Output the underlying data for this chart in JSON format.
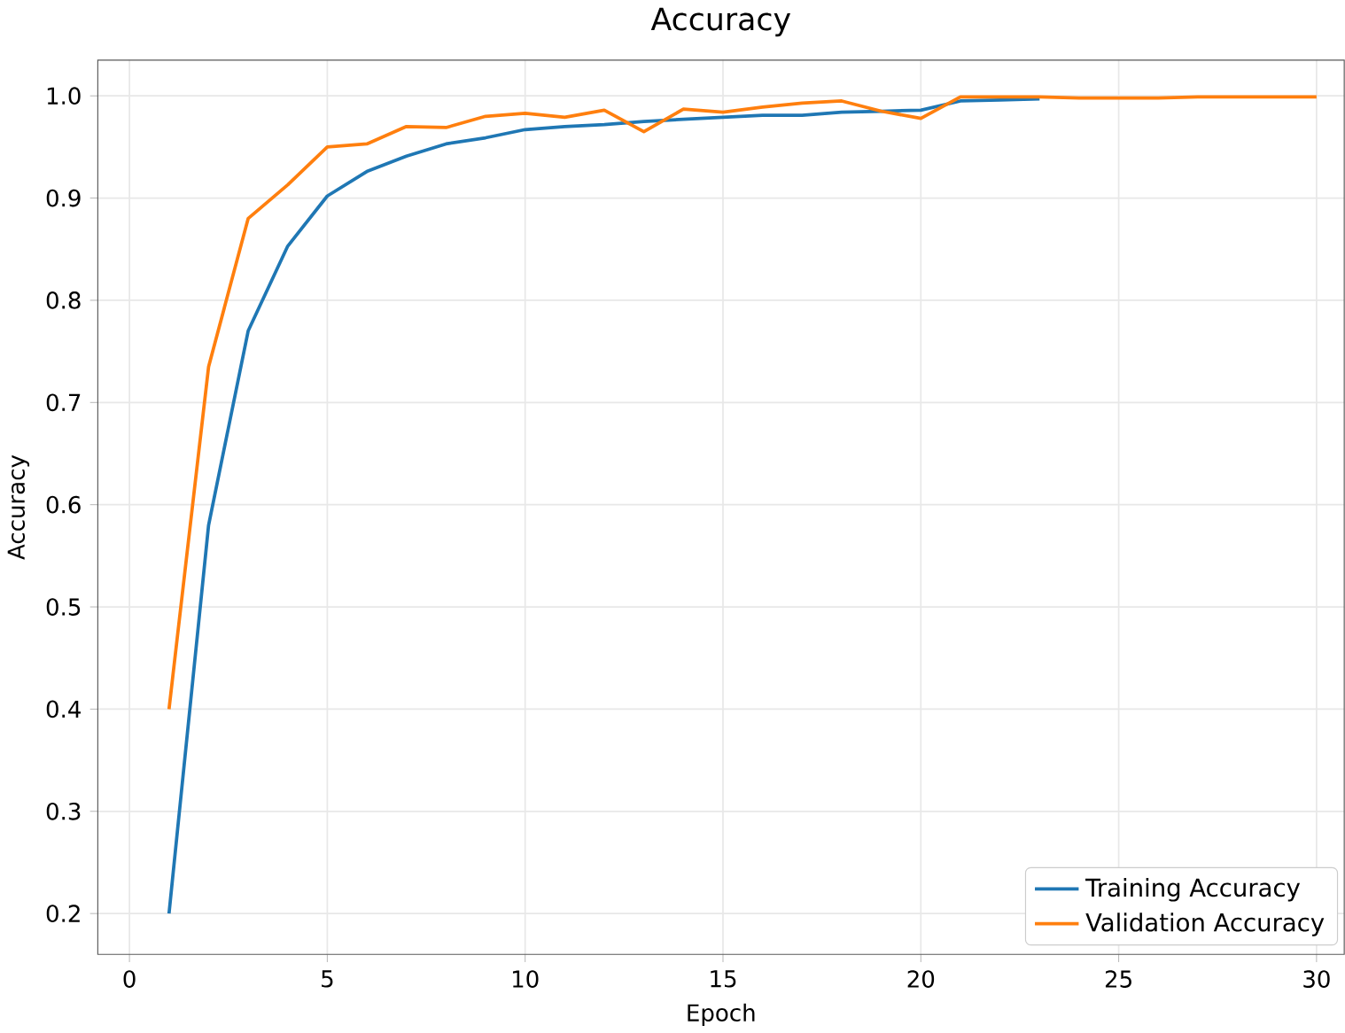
{
  "chart_data": {
    "type": "line",
    "title": "Accuracy",
    "xlabel": "Epoch",
    "ylabel": "Accuracy",
    "x": [
      1,
      2,
      3,
      4,
      5,
      6,
      7,
      8,
      9,
      10,
      11,
      12,
      13,
      14,
      15,
      16,
      17,
      18,
      19,
      20,
      21,
      22,
      23,
      24,
      25,
      26,
      27,
      28,
      29,
      30
    ],
    "series": [
      {
        "name": "Training Accuracy",
        "color": "#1f77b4",
        "values": [
          0.2,
          0.58,
          0.77,
          0.853,
          0.902,
          0.926,
          0.941,
          0.953,
          0.959,
          0.967,
          0.97,
          0.972,
          0.975,
          0.977,
          0.979,
          0.981,
          0.981,
          0.984,
          0.985,
          0.986,
          0.995,
          0.996,
          0.997,
          null,
          null,
          null,
          null,
          null,
          null,
          null
        ]
      },
      {
        "name": "Validation Accuracy",
        "color": "#ff7f0e",
        "values": [
          0.4,
          0.735,
          0.88,
          0.913,
          0.95,
          0.953,
          0.97,
          0.969,
          0.98,
          0.983,
          0.979,
          0.986,
          0.965,
          0.987,
          0.984,
          0.989,
          0.993,
          0.995,
          0.985,
          0.978,
          0.999,
          0.999,
          0.999,
          0.998,
          0.998,
          0.998,
          0.999,
          0.999,
          0.999,
          0.999
        ]
      }
    ],
    "xlim": [
      -0.8,
      30.7
    ],
    "ylim": [
      0.16,
      1.035
    ],
    "xticks": [
      0,
      5,
      10,
      15,
      20,
      25,
      30
    ],
    "yticks": [
      {
        "value": 0.2,
        "label": "0.2"
      },
      {
        "value": 0.3,
        "label": "0.3"
      },
      {
        "value": 0.4,
        "label": "0.4"
      },
      {
        "value": 0.5,
        "label": "0.5"
      },
      {
        "value": 0.6,
        "label": "0.6"
      },
      {
        "value": 0.7,
        "label": "0.7"
      },
      {
        "value": 0.8,
        "label": "0.8"
      },
      {
        "value": 0.9,
        "label": "0.9"
      },
      {
        "value": 1.0,
        "label": "1.0"
      }
    ],
    "grid": true,
    "legend": "bottom right",
    "marker": "none",
    "line_style": "solid"
  }
}
